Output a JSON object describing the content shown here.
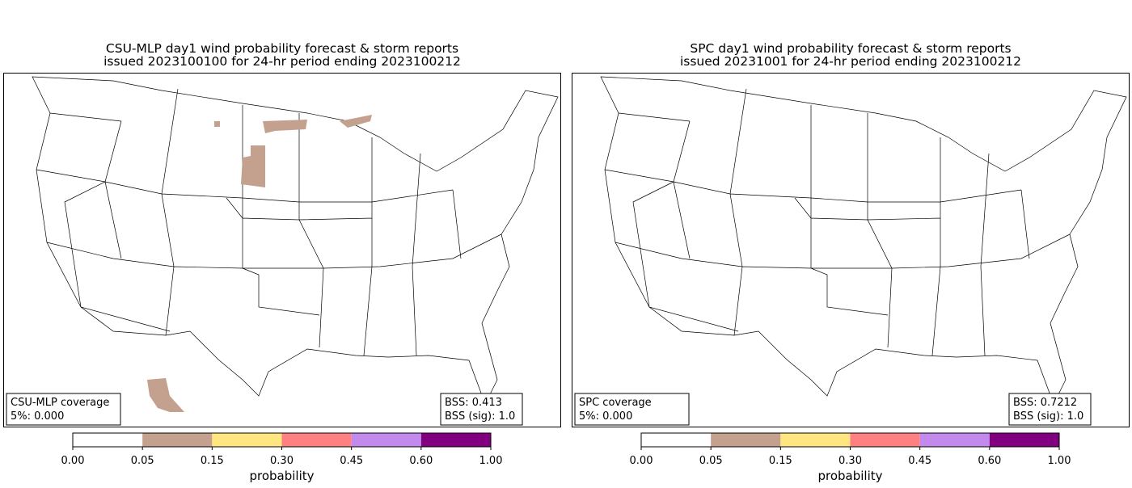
{
  "panels": [
    {
      "title": [
        "CSU-MLP day1 wind probability forecast & storm reports",
        "issued 2023100100 for 24-hr period ending 2023100212"
      ],
      "coverage": [
        "CSU-MLP coverage",
        "5%: 0.000"
      ],
      "scores": [
        "BSS: 0.413",
        "BSS (sig): 1.0"
      ]
    },
    {
      "title": [
        "SPC day1 wind probability forecast & storm reports",
        "issued 20231001 for 24-hr period ending 2023100212"
      ],
      "coverage": [
        "SPC coverage",
        "5%: 0.000"
      ],
      "scores": [
        "BSS: 0.7212",
        "BSS (sig): 1.0"
      ]
    }
  ],
  "colorbar": {
    "label": "probability",
    "colors": [
      "#ffffff",
      "#c4a08e",
      "#ffe680",
      "#ff8080",
      "#c38aee",
      "#800080"
    ],
    "ticks": [
      {
        "value": 0,
        "label": "0.00"
      },
      {
        "value": 0.05,
        "label": "0.05"
      },
      {
        "value": 0.15,
        "label": "0.15"
      },
      {
        "value": 0.3,
        "label": "0.30"
      },
      {
        "value": 0.45,
        "label": "0.45"
      },
      {
        "value": 0.6,
        "label": "0.60"
      },
      {
        "value": 1,
        "label": "1.00"
      }
    ]
  }
}
